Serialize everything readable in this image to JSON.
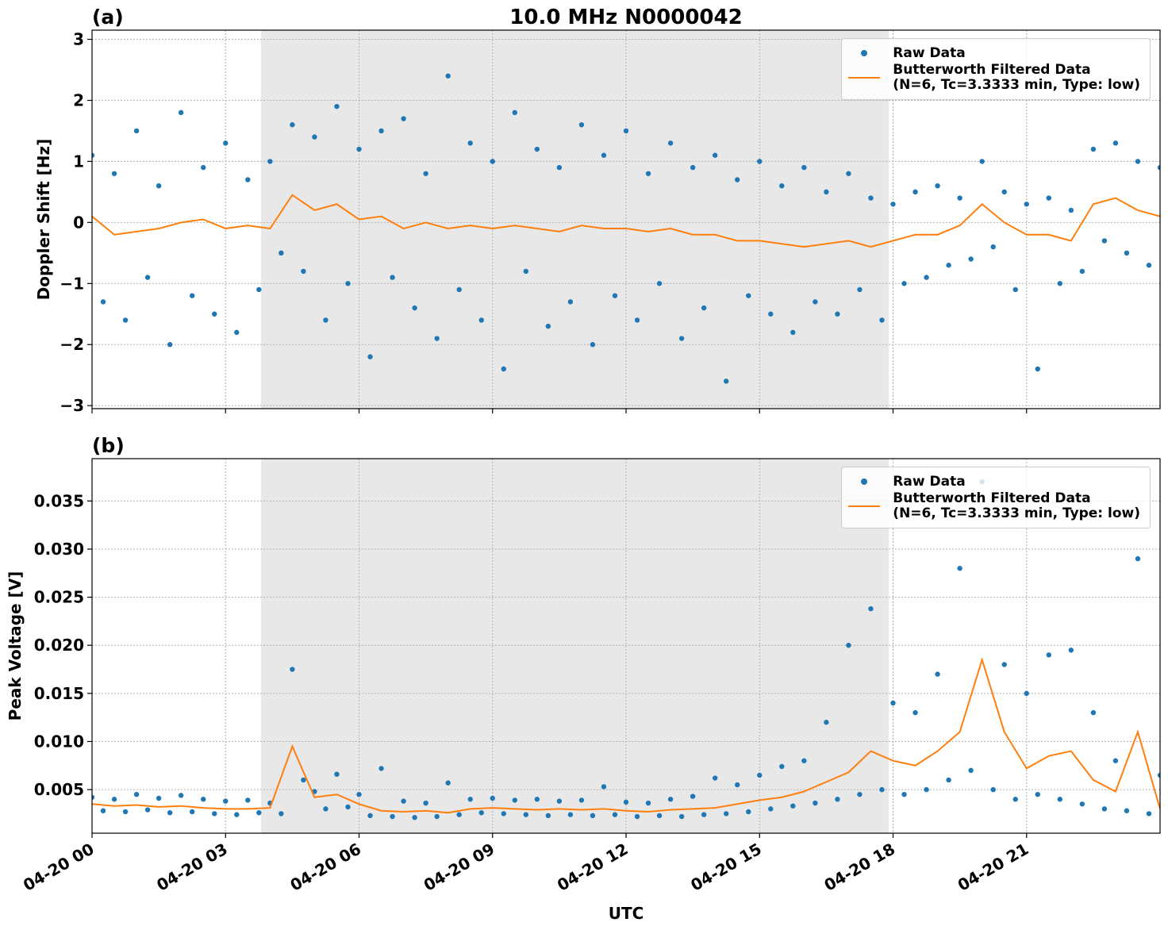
{
  "chart_data": [
    {
      "type": "line",
      "title": "10.0 MHz N0000042",
      "panel_label": "(a)",
      "ylabel": "Doppler Shift [Hz]",
      "xlim": [
        0,
        24
      ],
      "xticks": [
        0,
        3,
        6,
        9,
        12,
        15,
        18,
        21
      ],
      "ylim": [
        -3.05,
        3.15
      ],
      "yticks": [
        {
          "value": -3,
          "label": "−3"
        },
        {
          "value": -2,
          "label": "−2"
        },
        {
          "value": -1,
          "label": "−1"
        },
        0,
        1,
        2,
        3
      ],
      "grid": true,
      "legend": "upper right",
      "shaded_span": [
        3.8,
        17.9
      ],
      "shade_color": "#e8e8e8",
      "series": [
        {
          "name": "Raw Data",
          "kind": "scatter",
          "color": "#1f77b4",
          "x": [
            0,
            0.25,
            0.5,
            0.75,
            1,
            1.25,
            1.5,
            1.75,
            2,
            2.25,
            2.5,
            2.75,
            3,
            3.25,
            3.5,
            3.75,
            4,
            4.25,
            4.5,
            4.75,
            5,
            5.25,
            5.5,
            5.75,
            6,
            6.25,
            6.5,
            6.75,
            7,
            7.25,
            7.5,
            7.75,
            8,
            8.25,
            8.5,
            8.75,
            9,
            9.25,
            9.5,
            9.75,
            10,
            10.25,
            10.5,
            10.75,
            11,
            11.25,
            11.5,
            11.75,
            12,
            12.25,
            12.5,
            12.75,
            13,
            13.25,
            13.5,
            13.75,
            14,
            14.25,
            14.5,
            14.75,
            15,
            15.25,
            15.5,
            15.75,
            16,
            16.25,
            16.5,
            16.75,
            17,
            17.25,
            17.5,
            17.75,
            18,
            18.25,
            18.5,
            18.75,
            19,
            19.25,
            19.5,
            19.75,
            20,
            20.25,
            20.5,
            20.75,
            21,
            21.25,
            21.5,
            21.75,
            22,
            22.25,
            22.5,
            22.75,
            23,
            23.25,
            23.5,
            23.75,
            24
          ],
          "values": [
            1.1,
            -1.3,
            0.8,
            -1.6,
            1.5,
            -0.9,
            0.6,
            -2.0,
            1.8,
            -1.2,
            0.9,
            -1.5,
            1.3,
            -1.8,
            0.7,
            -1.1,
            1.0,
            -0.5,
            1.6,
            -0.8,
            1.4,
            -1.6,
            1.9,
            -1.0,
            1.2,
            -2.2,
            1.5,
            -0.9,
            1.7,
            -1.4,
            0.8,
            -1.9,
            2.4,
            -1.1,
            1.3,
            -1.6,
            1.0,
            -2.4,
            1.8,
            -0.8,
            1.2,
            -1.7,
            0.9,
            -1.3,
            1.6,
            -2.0,
            1.1,
            -1.2,
            1.5,
            -1.6,
            0.8,
            -1.0,
            1.3,
            -1.9,
            0.9,
            -1.4,
            1.1,
            -2.6,
            0.7,
            -1.2,
            1.0,
            -1.5,
            0.6,
            -1.8,
            0.9,
            -1.3,
            0.5,
            -1.5,
            0.8,
            -1.1,
            0.4,
            -1.6,
            0.3,
            -1.0,
            0.5,
            -0.9,
            0.6,
            -0.7,
            0.4,
            -0.6,
            1.0,
            -0.4,
            0.5,
            -1.1,
            0.3,
            -2.4,
            0.4,
            -1.0,
            0.2,
            -0.8,
            1.2,
            -0.3,
            1.3,
            -0.5,
            1.0,
            -0.7,
            0.9
          ]
        },
        {
          "name": "Butterworth Filtered Data\n(N=6, Tc=3.3333 min, Type: low)",
          "kind": "line",
          "color": "#ff7f0e",
          "x": [
            0,
            0.5,
            1,
            1.5,
            2,
            2.5,
            3,
            3.5,
            4,
            4.5,
            5,
            5.5,
            6,
            6.5,
            7,
            7.5,
            8,
            8.5,
            9,
            9.5,
            10,
            10.5,
            11,
            11.5,
            12,
            12.5,
            13,
            13.5,
            14,
            14.5,
            15,
            15.5,
            16,
            16.5,
            17,
            17.5,
            18,
            18.5,
            19,
            19.5,
            20,
            20.5,
            21,
            21.5,
            22,
            22.5,
            23,
            23.5,
            24
          ],
          "values": [
            0.1,
            -0.2,
            -0.15,
            -0.1,
            0.0,
            0.05,
            -0.1,
            -0.05,
            -0.1,
            0.45,
            0.2,
            0.3,
            0.05,
            0.1,
            -0.1,
            0.0,
            -0.1,
            -0.05,
            -0.1,
            -0.05,
            -0.1,
            -0.15,
            -0.05,
            -0.1,
            -0.1,
            -0.15,
            -0.1,
            -0.2,
            -0.2,
            -0.3,
            -0.3,
            -0.35,
            -0.4,
            -0.35,
            -0.3,
            -0.4,
            -0.3,
            -0.2,
            -0.2,
            -0.05,
            0.3,
            0.0,
            -0.2,
            -0.2,
            -0.3,
            0.3,
            0.4,
            0.2,
            0.1
          ]
        }
      ]
    },
    {
      "type": "line",
      "panel_label": "(b)",
      "ylabel": "Peak Voltage [V]",
      "xlabel": "UTC",
      "xlim": [
        0,
        24
      ],
      "xticks": [
        {
          "value": 0,
          "label": "04-20 00"
        },
        {
          "value": 3,
          "label": "04-20 03"
        },
        {
          "value": 6,
          "label": "04-20 06"
        },
        {
          "value": 9,
          "label": "04-20 09"
        },
        {
          "value": 12,
          "label": "04-20 12"
        },
        {
          "value": 15,
          "label": "04-20 15"
        },
        {
          "value": 18,
          "label": "04-20 18"
        },
        {
          "value": 21,
          "label": "04-20 21"
        }
      ],
      "ylim": [
        0.00047,
        0.0394
      ],
      "yticks": [
        0.005,
        {
          "value": 0.01,
          "label": "0.010"
        },
        0.015,
        {
          "value": 0.02,
          "label": "0.020"
        },
        0.025,
        {
          "value": 0.03,
          "label": "0.030"
        },
        0.035
      ],
      "grid": true,
      "legend": "upper right",
      "shaded_span": [
        3.8,
        17.9
      ],
      "shade_color": "#e8e8e8",
      "series": [
        {
          "name": "Raw Data",
          "kind": "scatter",
          "color": "#1f77b4",
          "x": [
            0,
            0.25,
            0.5,
            0.75,
            1,
            1.25,
            1.5,
            1.75,
            2,
            2.25,
            2.5,
            2.75,
            3,
            3.25,
            3.5,
            3.75,
            4,
            4.25,
            4.5,
            4.75,
            5,
            5.25,
            5.5,
            5.75,
            6,
            6.25,
            6.5,
            6.75,
            7,
            7.25,
            7.5,
            7.75,
            8,
            8.25,
            8.5,
            8.75,
            9,
            9.25,
            9.5,
            9.75,
            10,
            10.25,
            10.5,
            10.75,
            11,
            11.25,
            11.5,
            11.75,
            12,
            12.25,
            12.5,
            12.75,
            13,
            13.25,
            13.5,
            13.75,
            14,
            14.25,
            14.5,
            14.75,
            15,
            15.25,
            15.5,
            15.75,
            16,
            16.25,
            16.5,
            16.75,
            17,
            17.25,
            17.5,
            17.75,
            18,
            18.25,
            18.5,
            18.75,
            19,
            19.25,
            19.5,
            19.75,
            20,
            20.25,
            20.5,
            20.75,
            21,
            21.25,
            21.5,
            21.75,
            22,
            22.25,
            22.5,
            22.75,
            23,
            23.25,
            23.5,
            23.75,
            24
          ],
          "values": [
            0.0042,
            0.0028,
            0.004,
            0.0027,
            0.0045,
            0.0029,
            0.0041,
            0.0026,
            0.0044,
            0.0027,
            0.004,
            0.0025,
            0.0038,
            0.0024,
            0.0039,
            0.0026,
            0.0036,
            0.0025,
            0.0175,
            0.006,
            0.0048,
            0.003,
            0.0066,
            0.0032,
            0.0045,
            0.0023,
            0.0072,
            0.0022,
            0.0038,
            0.0021,
            0.0036,
            0.0022,
            0.0057,
            0.0024,
            0.004,
            0.0026,
            0.0041,
            0.0025,
            0.0039,
            0.0024,
            0.004,
            0.0023,
            0.0038,
            0.0024,
            0.0039,
            0.0023,
            0.0053,
            0.0024,
            0.0037,
            0.0022,
            0.0036,
            0.0023,
            0.004,
            0.0022,
            0.0043,
            0.0024,
            0.0062,
            0.0025,
            0.0055,
            0.0027,
            0.0065,
            0.003,
            0.0074,
            0.0033,
            0.008,
            0.0036,
            0.012,
            0.004,
            0.02,
            0.0045,
            0.0238,
            0.005,
            0.014,
            0.0045,
            0.013,
            0.005,
            0.017,
            0.006,
            0.028,
            0.007,
            0.037,
            0.005,
            0.018,
            0.004,
            0.015,
            0.0045,
            0.019,
            0.004,
            0.0195,
            0.0035,
            0.013,
            0.003,
            0.008,
            0.0028,
            0.029,
            0.0025,
            0.0065
          ]
        },
        {
          "name": "Butterworth Filtered Data\n(N=6, Tc=3.3333 min, Type: low)",
          "kind": "line",
          "color": "#ff7f0e",
          "x": [
            0,
            0.5,
            1,
            1.5,
            2,
            2.5,
            3,
            3.5,
            4,
            4.5,
            5,
            5.5,
            6,
            6.5,
            7,
            7.5,
            8,
            8.5,
            9,
            9.5,
            10,
            10.5,
            11,
            11.5,
            12,
            12.5,
            13,
            13.5,
            14,
            14.5,
            15,
            15.5,
            16,
            16.5,
            17,
            17.5,
            18,
            18.5,
            19,
            19.5,
            20,
            20.5,
            21,
            21.5,
            22,
            22.5,
            23,
            23.5,
            24
          ],
          "values": [
            0.0035,
            0.0033,
            0.0034,
            0.0032,
            0.0033,
            0.0031,
            0.003,
            0.003,
            0.0031,
            0.0095,
            0.0042,
            0.0045,
            0.0035,
            0.0028,
            0.0027,
            0.0028,
            0.0026,
            0.003,
            0.0031,
            0.003,
            0.0029,
            0.003,
            0.0029,
            0.003,
            0.0028,
            0.0027,
            0.0029,
            0.003,
            0.0031,
            0.0035,
            0.0039,
            0.0042,
            0.0048,
            0.0058,
            0.0068,
            0.009,
            0.008,
            0.0075,
            0.009,
            0.011,
            0.0185,
            0.011,
            0.0072,
            0.0085,
            0.009,
            0.006,
            0.0048,
            0.011,
            0.003
          ]
        }
      ]
    }
  ]
}
